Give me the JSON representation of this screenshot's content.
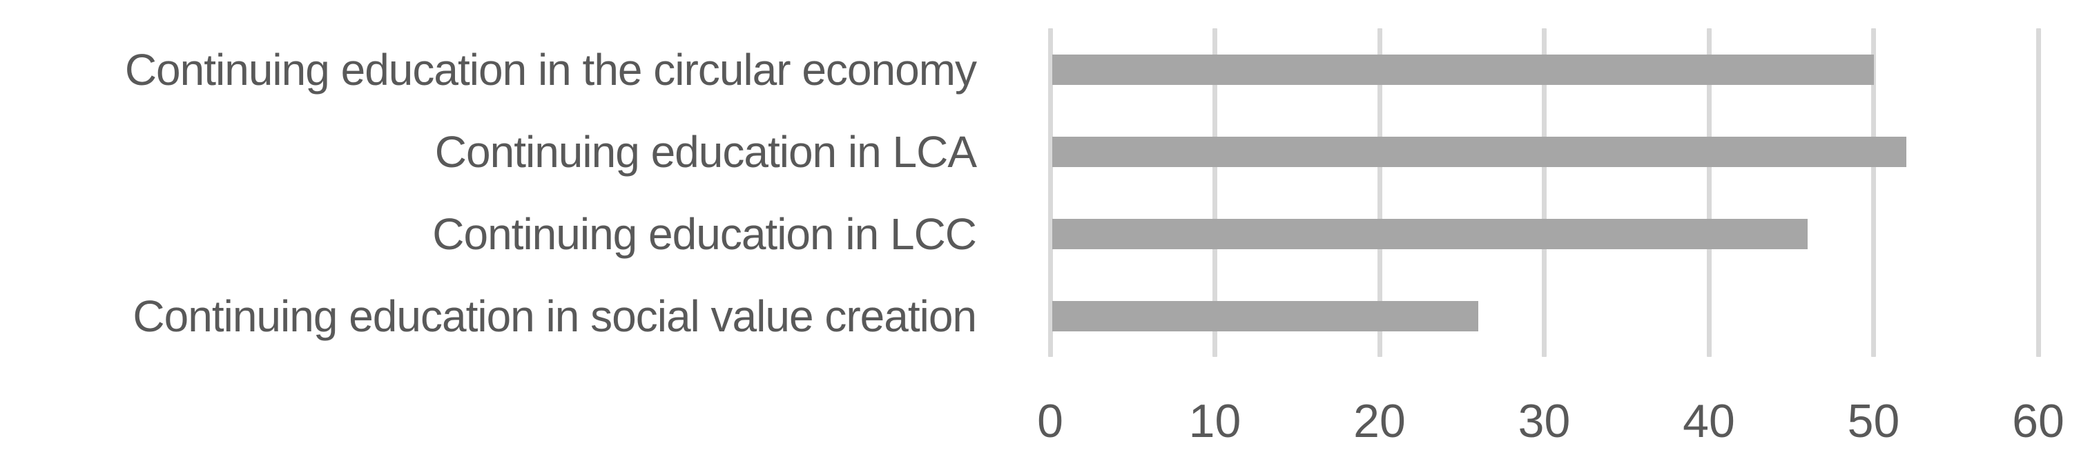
{
  "chart_data": {
    "type": "bar",
    "orientation": "horizontal",
    "title": "",
    "xlabel": "",
    "ylabel": "",
    "categories": [
      "Continuing education in the circular economy",
      "Continuing education in LCA",
      "Continuing education in LCC",
      "Continuing education in social value creation"
    ],
    "values": [
      50,
      52,
      46,
      26
    ],
    "x_ticks": [
      0,
      10,
      20,
      30,
      40,
      50,
      60
    ],
    "xlim": [
      0,
      60
    ],
    "grid": true,
    "grid_direction": "vertical",
    "legend": false,
    "colors": {
      "bar": "#a6a6a6",
      "gridline": "#d9d9d9",
      "tick_label": "#595959",
      "category_label": "#595959",
      "background": "#ffffff"
    }
  }
}
